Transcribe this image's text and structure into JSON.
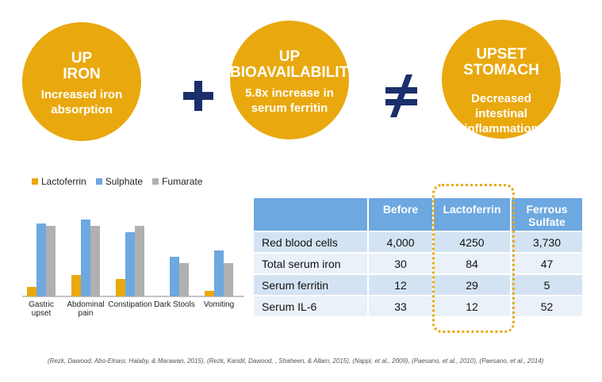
{
  "circles": [
    {
      "head1": "UP",
      "head2": "IRON",
      "body": "Increased iron absorption"
    },
    {
      "head1": "UP",
      "head2": "BIOAVAILABILITY",
      "body": "5.8x increase in serum ferritin"
    },
    {
      "head1": "UPSET",
      "head2": "STOMACH",
      "body": "Decreased intestinal inflammation"
    }
  ],
  "operators": {
    "plus": "+",
    "neq": "≠"
  },
  "colors": {
    "gold": "#e9a80e",
    "navy": "#1a2f6b",
    "lactoferrin": "#e9a80e",
    "sulphate": "#6da8e0",
    "fumarate": "#b0b0b0"
  },
  "chart_data": {
    "type": "bar",
    "categories": [
      "Gastric upset",
      "Abdominal pain",
      "Constipation",
      "Dark Stools",
      "Vomiting"
    ],
    "category_lines": [
      [
        "Gastric",
        "upset"
      ],
      [
        "Abdominal",
        "pain"
      ],
      [
        "Constipation"
      ],
      [
        "Dark Stools"
      ],
      [
        "Vomiting"
      ]
    ],
    "series": [
      {
        "name": "Lactoferrin",
        "values": [
          12,
          27,
          22,
          0,
          7
        ]
      },
      {
        "name": "Sulphate",
        "values": [
          92,
          97,
          81,
          50,
          58
        ]
      },
      {
        "name": "Fumarate",
        "values": [
          89,
          89,
          89,
          42,
          42
        ]
      }
    ],
    "ylim": [
      0,
      100
    ],
    "legend": "top"
  },
  "table": {
    "headers": [
      "",
      "Before",
      "Lactoferrin",
      "Ferrous Sulfate"
    ],
    "rows": [
      [
        "Red blood cells",
        "4,000",
        "4250",
        "3,730"
      ],
      [
        "Total serum iron",
        "30",
        "84",
        "47"
      ],
      [
        "Serum ferritin",
        "12",
        "29",
        "5"
      ],
      [
        "Serum IL-6",
        "33",
        "12",
        "52"
      ]
    ]
  },
  "citation": "(Rezk, Dawood, Abo-Elnasr, Halaby, & Marawan, 2015), (Rezk, Kandil, Dawood, , Shaheen, & Allam, 2015), (Nappi, et al., 2009), (Paesano, et al., 2010), (Paesano, et al., 2014)"
}
